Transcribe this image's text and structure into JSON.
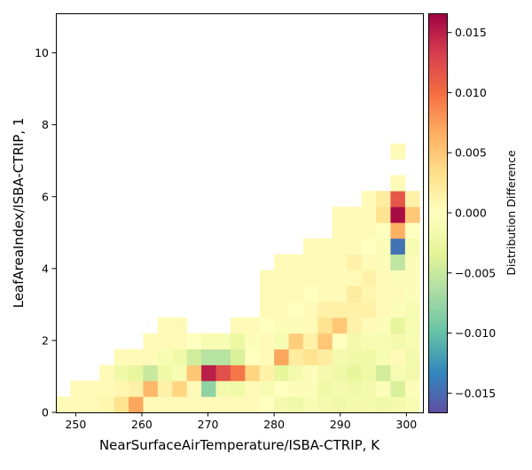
{
  "chart_data": {
    "type": "heatmap",
    "xlabel": "NearSurfaceAirTemperature/ISBA-CTRIP,  K",
    "ylabel": "LeafAreaIndex/ISBA-CTRIP,  1",
    "colorbar_label": "Distribution Difference",
    "colormap": "Spectral_r",
    "xlim": [
      247,
      302.5
    ],
    "ylim": [
      0,
      11.1
    ],
    "clim": [
      -0.0166,
      0.0166
    ],
    "x_ticks": [
      250,
      260,
      270,
      280,
      290,
      300
    ],
    "x_tick_labels": [
      "250",
      "260",
      "270",
      "280",
      "290",
      "300"
    ],
    "y_ticks": [
      0,
      2,
      4,
      6,
      8,
      10
    ],
    "y_tick_labels": [
      "0",
      "2",
      "4",
      "6",
      "8",
      "10"
    ],
    "colorbar_ticks": [
      -0.015,
      -0.01,
      -0.005,
      0,
      0.005,
      0.01,
      0.015
    ],
    "colorbar_tick_labels": [
      "−0.015",
      "−0.010",
      "−0.005",
      "0.000",
      "0.005",
      "0.010",
      "0.015"
    ],
    "grid": false,
    "bin_width_x": 2.2,
    "bin_height_y": 0.44,
    "cells": [
      [
        248.1,
        0.22,
        0.0005
      ],
      [
        250.3,
        0.22,
        0.0005
      ],
      [
        252.5,
        0.22,
        0.0005
      ],
      [
        254.7,
        0.22,
        0.001
      ],
      [
        256.9,
        0.22,
        0.003
      ],
      [
        259.1,
        0.22,
        0.007
      ],
      [
        261.3,
        0.22,
        0.0005
      ],
      [
        263.5,
        0.22,
        0.0005
      ],
      [
        265.7,
        0.22,
        0.0005
      ],
      [
        267.9,
        0.22,
        0.0005
      ],
      [
        270.1,
        0.22,
        0.0005
      ],
      [
        272.3,
        0.22,
        0.0005
      ],
      [
        274.5,
        0.22,
        0.0005
      ],
      [
        276.7,
        0.22,
        0.0005
      ],
      [
        278.9,
        0.22,
        0.0
      ],
      [
        281.1,
        0.22,
        -0.0015
      ],
      [
        283.3,
        0.22,
        -0.002
      ],
      [
        285.5,
        0.22,
        -0.001
      ],
      [
        287.7,
        0.22,
        -0.0015
      ],
      [
        289.9,
        0.22,
        -0.002
      ],
      [
        292.1,
        0.22,
        -0.0015
      ],
      [
        294.3,
        0.22,
        -0.0015
      ],
      [
        296.5,
        0.22,
        -0.002
      ],
      [
        298.7,
        0.22,
        -0.0015
      ],
      [
        300.9,
        0.22,
        -0.001
      ],
      [
        250.3,
        0.66,
        0.0005
      ],
      [
        252.5,
        0.66,
        0.0005
      ],
      [
        254.7,
        0.66,
        0.0005
      ],
      [
        256.9,
        0.66,
        0.001
      ],
      [
        259.1,
        0.66,
        0.0015
      ],
      [
        261.3,
        0.66,
        0.006
      ],
      [
        263.5,
        0.66,
        0.0015
      ],
      [
        265.7,
        0.66,
        0.004
      ],
      [
        267.9,
        0.66,
        0.0005
      ],
      [
        270.1,
        0.66,
        -0.008
      ],
      [
        272.3,
        0.66,
        -0.0015
      ],
      [
        274.5,
        0.66,
        -0.002
      ],
      [
        276.7,
        0.66,
        0.0005
      ],
      [
        278.9,
        0.66,
        -0.001
      ],
      [
        281.1,
        0.66,
        0.0
      ],
      [
        283.3,
        0.66,
        -0.0005
      ],
      [
        285.5,
        0.66,
        -0.0005
      ],
      [
        287.7,
        0.66,
        -0.002
      ],
      [
        289.9,
        0.66,
        -0.0015
      ],
      [
        292.1,
        0.66,
        -0.002
      ],
      [
        294.3,
        0.66,
        -0.0015
      ],
      [
        296.5,
        0.66,
        -0.0005
      ],
      [
        298.7,
        0.66,
        -0.004
      ],
      [
        300.9,
        0.66,
        -0.0005
      ],
      [
        254.7,
        1.1,
        0.0005
      ],
      [
        256.9,
        1.1,
        -0.002
      ],
      [
        259.1,
        1.1,
        -0.003
      ],
      [
        261.3,
        1.1,
        -0.005
      ],
      [
        263.5,
        1.1,
        -0.002
      ],
      [
        265.7,
        1.1,
        -0.001
      ],
      [
        267.9,
        1.1,
        0.005
      ],
      [
        270.1,
        1.1,
        0.015
      ],
      [
        272.3,
        1.1,
        0.012
      ],
      [
        274.5,
        1.1,
        0.0095
      ],
      [
        276.7,
        1.1,
        0.004
      ],
      [
        278.9,
        1.1,
        0.0015
      ],
      [
        281.1,
        1.1,
        -0.003
      ],
      [
        283.3,
        1.1,
        -0.0015
      ],
      [
        285.5,
        1.1,
        -0.0005
      ],
      [
        287.7,
        1.1,
        -0.0015
      ],
      [
        289.9,
        1.1,
        -0.002
      ],
      [
        292.1,
        1.1,
        -0.003
      ],
      [
        294.3,
        1.1,
        -0.002
      ],
      [
        296.5,
        1.1,
        -0.0045
      ],
      [
        298.7,
        1.1,
        -0.001
      ],
      [
        300.9,
        1.1,
        -0.0015
      ],
      [
        256.9,
        1.54,
        0.0005
      ],
      [
        259.1,
        1.54,
        0.0005
      ],
      [
        261.3,
        1.54,
        0.0005
      ],
      [
        263.5,
        1.54,
        -0.001
      ],
      [
        265.7,
        1.54,
        -0.002
      ],
      [
        267.9,
        1.54,
        -0.0045
      ],
      [
        270.1,
        1.54,
        -0.006
      ],
      [
        272.3,
        1.54,
        -0.006
      ],
      [
        274.5,
        1.54,
        -0.004
      ],
      [
        276.7,
        1.54,
        0.0
      ],
      [
        278.9,
        1.54,
        0.0005
      ],
      [
        281.1,
        1.54,
        0.007
      ],
      [
        283.3,
        1.54,
        0.002
      ],
      [
        285.5,
        1.54,
        0.003
      ],
      [
        287.7,
        1.54,
        0.002
      ],
      [
        289.9,
        1.54,
        -0.0015
      ],
      [
        292.1,
        1.54,
        -0.002
      ],
      [
        294.3,
        1.54,
        -0.002
      ],
      [
        296.5,
        1.54,
        -0.001
      ],
      [
        298.7,
        1.54,
        0.0005
      ],
      [
        300.9,
        1.54,
        -0.0015
      ],
      [
        261.3,
        1.98,
        0.0005
      ],
      [
        263.5,
        1.98,
        0.0005
      ],
      [
        265.7,
        1.98,
        0.0005
      ],
      [
        267.9,
        1.98,
        0.0
      ],
      [
        270.1,
        1.98,
        -0.001
      ],
      [
        272.3,
        1.98,
        -0.001
      ],
      [
        274.5,
        1.98,
        -0.0025
      ],
      [
        276.7,
        1.98,
        -0.0005
      ],
      [
        278.9,
        1.98,
        0.0005
      ],
      [
        281.1,
        1.98,
        -0.001
      ],
      [
        283.3,
        1.98,
        0.0045
      ],
      [
        285.5,
        1.98,
        0.0015
      ],
      [
        287.7,
        1.98,
        0.005
      ],
      [
        289.9,
        1.98,
        0.0
      ],
      [
        292.1,
        1.98,
        -0.0015
      ],
      [
        294.3,
        1.98,
        -0.001
      ],
      [
        296.5,
        1.98,
        -0.001
      ],
      [
        298.7,
        1.98,
        -0.0015
      ],
      [
        300.9,
        1.98,
        -0.001
      ],
      [
        263.5,
        2.42,
        0.0005
      ],
      [
        265.7,
        2.42,
        0.0005
      ],
      [
        274.5,
        2.42,
        0.0005
      ],
      [
        276.7,
        2.42,
        0.0005
      ],
      [
        278.9,
        2.42,
        0.0
      ],
      [
        281.1,
        2.42,
        -0.0005
      ],
      [
        283.3,
        2.42,
        -0.0005
      ],
      [
        285.5,
        2.42,
        0.0005
      ],
      [
        287.7,
        2.42,
        0.003
      ],
      [
        289.9,
        2.42,
        0.005
      ],
      [
        292.1,
        2.42,
        0.0015
      ],
      [
        294.3,
        2.42,
        0.0005
      ],
      [
        296.5,
        2.42,
        -0.0005
      ],
      [
        298.7,
        2.42,
        -0.003
      ],
      [
        300.9,
        2.42,
        -0.001
      ],
      [
        278.9,
        2.86,
        0.0005
      ],
      [
        281.1,
        2.86,
        0.0005
      ],
      [
        283.3,
        2.86,
        0.0
      ],
      [
        285.5,
        2.86,
        0.0005
      ],
      [
        287.7,
        2.86,
        0.0015
      ],
      [
        289.9,
        2.86,
        0.0015
      ],
      [
        292.1,
        2.86,
        0.0015
      ],
      [
        294.3,
        2.86,
        0.0015
      ],
      [
        296.5,
        2.86,
        0.0005
      ],
      [
        298.7,
        2.86,
        -0.0005
      ],
      [
        300.9,
        2.86,
        -0.001
      ],
      [
        278.9,
        3.3,
        0.0005
      ],
      [
        281.1,
        3.3,
        0.0005
      ],
      [
        283.3,
        3.3,
        0.0005
      ],
      [
        285.5,
        3.3,
        0.0
      ],
      [
        287.7,
        3.3,
        0.0005
      ],
      [
        289.9,
        3.3,
        0.0005
      ],
      [
        292.1,
        3.3,
        0.002
      ],
      [
        294.3,
        3.3,
        0.001
      ],
      [
        296.5,
        3.3,
        0.0005
      ],
      [
        298.7,
        3.3,
        0.0005
      ],
      [
        300.9,
        3.3,
        -0.0005
      ],
      [
        278.9,
        3.74,
        0.0005
      ],
      [
        281.1,
        3.74,
        0.0005
      ],
      [
        283.3,
        3.74,
        0.0005
      ],
      [
        285.5,
        3.74,
        0.0005
      ],
      [
        287.7,
        3.74,
        0.0005
      ],
      [
        289.9,
        3.74,
        0.0005
      ],
      [
        292.1,
        3.74,
        0.0005
      ],
      [
        294.3,
        3.74,
        0.0015
      ],
      [
        296.5,
        3.74,
        0.0005
      ],
      [
        298.7,
        3.74,
        -0.0005
      ],
      [
        300.9,
        3.74,
        -0.0005
      ],
      [
        281.1,
        4.18,
        0.0005
      ],
      [
        283.3,
        4.18,
        0.0005
      ],
      [
        285.5,
        4.18,
        0.0005
      ],
      [
        287.7,
        4.18,
        0.0005
      ],
      [
        289.9,
        4.18,
        0.0005
      ],
      [
        292.1,
        4.18,
        0.0015
      ],
      [
        294.3,
        4.18,
        0.0005
      ],
      [
        296.5,
        4.18,
        -0.0005
      ],
      [
        298.7,
        4.18,
        -0.0055
      ],
      [
        300.9,
        4.18,
        -0.0005
      ],
      [
        285.5,
        4.62,
        0.0005
      ],
      [
        287.7,
        4.62,
        0.0005
      ],
      [
        289.9,
        4.62,
        0.0005
      ],
      [
        292.1,
        4.62,
        0.0005
      ],
      [
        294.3,
        4.62,
        0.0
      ],
      [
        296.5,
        4.62,
        -0.0005
      ],
      [
        298.7,
        4.62,
        -0.0145
      ],
      [
        300.9,
        4.62,
        -0.001
      ],
      [
        289.9,
        5.06,
        0.0005
      ],
      [
        292.1,
        5.06,
        0.0005
      ],
      [
        294.3,
        5.06,
        0.0005
      ],
      [
        296.5,
        5.06,
        0.0
      ],
      [
        298.7,
        5.06,
        0.0065
      ],
      [
        300.9,
        5.06,
        0.0
      ],
      [
        289.9,
        5.5,
        0.0005
      ],
      [
        292.1,
        5.5,
        0.0005
      ],
      [
        294.3,
        5.5,
        0.0005
      ],
      [
        296.5,
        5.5,
        0.003
      ],
      [
        298.7,
        5.5,
        0.016
      ],
      [
        300.9,
        5.5,
        0.005
      ],
      [
        294.3,
        5.94,
        0.0005
      ],
      [
        296.5,
        5.94,
        0.002
      ],
      [
        298.7,
        5.94,
        0.0115
      ],
      [
        300.9,
        5.94,
        0.0015
      ],
      [
        298.7,
        6.38,
        0.0005
      ],
      [
        298.7,
        7.26,
        0.0005
      ]
    ]
  }
}
